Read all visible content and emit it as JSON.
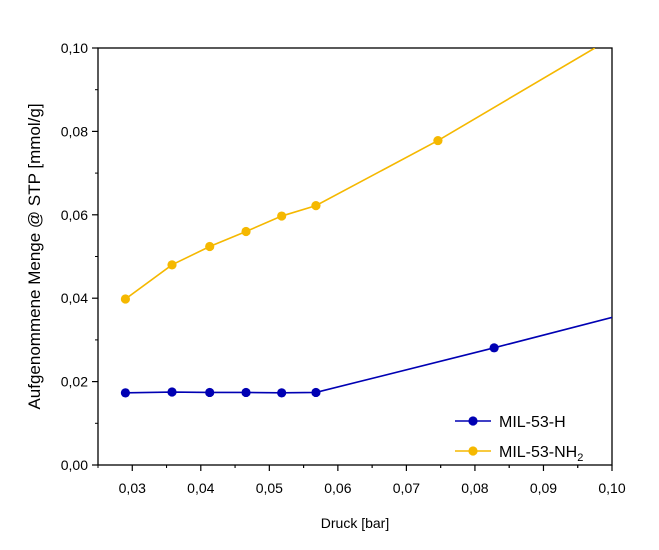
{
  "chart_data": {
    "type": "line",
    "xlabel": "Druck [bar]",
    "ylabel": "Aufgenommene Menge @ STP [mmol/g]",
    "xlim": [
      0.025,
      0.1
    ],
    "ylim": [
      0.0,
      0.1
    ],
    "x_ticks": [
      0.03,
      0.04,
      0.05,
      0.06,
      0.07,
      0.08,
      0.09,
      0.1
    ],
    "x_tick_labels": [
      "0,03",
      "0,04",
      "0,05",
      "0,06",
      "0,07",
      "0,08",
      "0,09",
      "0,10"
    ],
    "y_ticks": [
      0.0,
      0.02,
      0.04,
      0.06,
      0.08,
      0.1
    ],
    "y_tick_labels": [
      "0,00",
      "0,02",
      "0,04",
      "0,06",
      "0,08",
      "0,10"
    ],
    "grid": false,
    "legend_position": "bottom-right",
    "series": [
      {
        "name": "MIL-53-H",
        "name_base": "MIL-53-NH",
        "color": "#0000b3",
        "x": [
          0.029,
          0.0358,
          0.0413,
          0.0466,
          0.0518,
          0.0568,
          0.0828
        ],
        "y": [
          0.0173,
          0.0175,
          0.0174,
          0.0174,
          0.0173,
          0.0174,
          0.0281
        ],
        "line_end": [
          0.1,
          0.0354
        ]
      },
      {
        "name": "MIL-53-NH2",
        "name_base": "MIL-53-NH",
        "name_sub": "2",
        "color": "#f5b800",
        "x": [
          0.029,
          0.0358,
          0.0413,
          0.0466,
          0.0518,
          0.0568,
          0.0746
        ],
        "y": [
          0.0398,
          0.048,
          0.0524,
          0.056,
          0.0597,
          0.0622,
          0.0778
        ],
        "line_end": [
          0.0975,
          0.1
        ]
      }
    ]
  }
}
